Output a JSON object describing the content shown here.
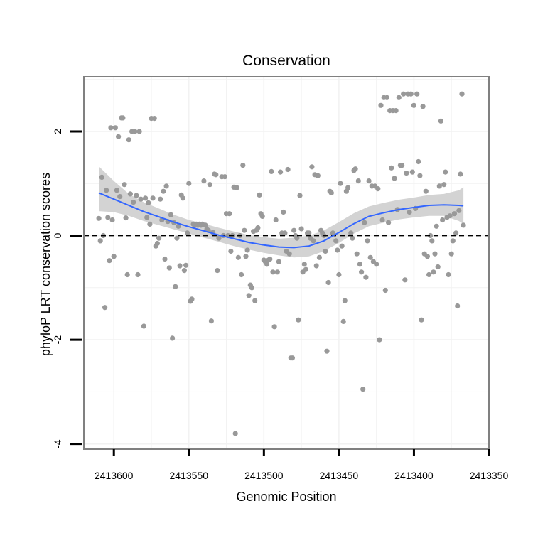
{
  "chart_data": {
    "type": "scatter",
    "title": "Conservation",
    "xlabel": "Genomic Position",
    "ylabel": "phyloP LRT conservation scores",
    "x_reversed": true,
    "xlim": [
      2413620,
      2413350
    ],
    "ylim": [
      -4.1,
      3.05
    ],
    "x_ticks": [
      2413600,
      2413550,
      2413500,
      2413450,
      2413400,
      2413350
    ],
    "x_tick_labels": [
      "2413600",
      "2413550",
      "2413500",
      "2413450",
      "2413400",
      "2413350"
    ],
    "y_ticks": [
      -4,
      -2,
      0,
      2
    ],
    "y_tick_labels": [
      "-4",
      "-2",
      "0",
      "2"
    ],
    "reference_line": {
      "y": 0,
      "style": "dashed"
    },
    "colors": {
      "points": "#999999",
      "smooth_line": "#3366ff",
      "ribbon": "#d3d3d3",
      "grid": "#f2f2f2",
      "panel_border": "#808080"
    },
    "points": [
      [
        2413610,
        0.33
      ],
      [
        2413609,
        -0.1
      ],
      [
        2413608,
        1.12
      ],
      [
        2413607,
        0.0
      ],
      [
        2413606,
        -1.38
      ],
      [
        2413605,
        0.87
      ],
      [
        2413604,
        0.35
      ],
      [
        2413603,
        -0.48
      ],
      [
        2413602,
        2.07
      ],
      [
        2413601,
        0.3
      ],
      [
        2413600,
        -0.4
      ],
      [
        2413599,
        2.07
      ],
      [
        2413598,
        0.87
      ],
      [
        2413597,
        1.9
      ],
      [
        2413596,
        0.75
      ],
      [
        2413595,
        2.26
      ],
      [
        2413594,
        2.26
      ],
      [
        2413593,
        0.98
      ],
      [
        2413592,
        0.34
      ],
      [
        2413591,
        -0.75
      ],
      [
        2413590,
        1.84
      ],
      [
        2413589,
        0.8
      ],
      [
        2413588,
        2.0
      ],
      [
        2413587,
        0.64
      ],
      [
        2413586,
        2.0
      ],
      [
        2413585,
        0.77
      ],
      [
        2413584,
        -0.75
      ],
      [
        2413583,
        2.0
      ],
      [
        2413582,
        0.7
      ],
      [
        2413580,
        -1.74
      ],
      [
        2413579,
        0.72
      ],
      [
        2413578,
        0.35
      ],
      [
        2413577,
        0.63
      ],
      [
        2413576,
        0.22
      ],
      [
        2413575,
        2.25
      ],
      [
        2413574,
        0.72
      ],
      [
        2413573,
        2.25
      ],
      [
        2413572,
        -0.2
      ],
      [
        2413571,
        -0.15
      ],
      [
        2413570,
        -0.05
      ],
      [
        2413569,
        0.7
      ],
      [
        2413568,
        0.3
      ],
      [
        2413567,
        0.85
      ],
      [
        2413566,
        -0.45
      ],
      [
        2413565,
        0.95
      ],
      [
        2413564,
        0.27
      ],
      [
        2413563,
        -0.62
      ],
      [
        2413562,
        0.4
      ],
      [
        2413561,
        -1.97
      ],
      [
        2413560,
        0.25
      ],
      [
        2413559,
        -0.98
      ],
      [
        2413558,
        -0.05
      ],
      [
        2413557,
        0.18
      ],
      [
        2413556,
        -0.58
      ],
      [
        2413555,
        0.78
      ],
      [
        2413554,
        0.72
      ],
      [
        2413553,
        -0.67
      ],
      [
        2413552,
        -0.57
      ],
      [
        2413551,
        0.05
      ],
      [
        2413550,
        1.0
      ],
      [
        2413549,
        -1.26
      ],
      [
        2413548,
        -1.22
      ],
      [
        2413547,
        0.22
      ],
      [
        2413546,
        0.2
      ],
      [
        2413545,
        0.22
      ],
      [
        2413544,
        0.2
      ],
      [
        2413543,
        0.22
      ],
      [
        2413542,
        0.2
      ],
      [
        2413541,
        0.22
      ],
      [
        2413540,
        1.05
      ],
      [
        2413539,
        0.2
      ],
      [
        2413538,
        0.12
      ],
      [
        2413537,
        0.1
      ],
      [
        2413536,
        0.98
      ],
      [
        2413535,
        -1.64
      ],
      [
        2413534,
        0.06
      ],
      [
        2413533,
        1.18
      ],
      [
        2413532,
        1.17
      ],
      [
        2413531,
        -0.67
      ],
      [
        2413530,
        -0.05
      ],
      [
        2413528,
        1.13
      ],
      [
        2413527,
        0.0
      ],
      [
        2413526,
        1.13
      ],
      [
        2413525,
        0.42
      ],
      [
        2413524,
        0.0
      ],
      [
        2413523,
        0.42
      ],
      [
        2413522,
        -0.3
      ],
      [
        2413521,
        0.0
      ],
      [
        2413520,
        0.93
      ],
      [
        2413519,
        -3.8
      ],
      [
        2413518,
        0.92
      ],
      [
        2413517,
        -0.42
      ],
      [
        2413516,
        0.0
      ],
      [
        2413515,
        -0.75
      ],
      [
        2413514,
        1.35
      ],
      [
        2413513,
        0.1
      ],
      [
        2413512,
        -0.4
      ],
      [
        2413511,
        -0.28
      ],
      [
        2413510,
        -1.15
      ],
      [
        2413509,
        -0.95
      ],
      [
        2413508,
        -1.0
      ],
      [
        2413507,
        0.08
      ],
      [
        2413506,
        -1.25
      ],
      [
        2413505,
        0.1
      ],
      [
        2413504,
        0.15
      ],
      [
        2413503,
        0.78
      ],
      [
        2413502,
        0.42
      ],
      [
        2413501,
        0.37
      ],
      [
        2413500,
        -0.47
      ],
      [
        2413499,
        -0.5
      ],
      [
        2413498,
        -0.55
      ],
      [
        2413497,
        -0.47
      ],
      [
        2413496,
        -0.45
      ],
      [
        2413495,
        1.23
      ],
      [
        2413494,
        -0.7
      ],
      [
        2413493,
        -1.75
      ],
      [
        2413492,
        0.3
      ],
      [
        2413491,
        -0.7
      ],
      [
        2413490,
        -0.5
      ],
      [
        2413489,
        1.22
      ],
      [
        2413488,
        0.05
      ],
      [
        2413487,
        0.45
      ],
      [
        2413486,
        0.05
      ],
      [
        2413485,
        -0.3
      ],
      [
        2413484,
        1.27
      ],
      [
        2413483,
        -0.35
      ],
      [
        2413482,
        -2.35
      ],
      [
        2413481,
        -2.35
      ],
      [
        2413480,
        0.1
      ],
      [
        2413479,
        0.0
      ],
      [
        2413478,
        -0.05
      ],
      [
        2413477,
        -1.62
      ],
      [
        2413476,
        0.77
      ],
      [
        2413475,
        0.13
      ],
      [
        2413474,
        -0.7
      ],
      [
        2413473,
        -0.55
      ],
      [
        2413472,
        -0.65
      ],
      [
        2413471,
        0.05
      ],
      [
        2413470,
        0.05
      ],
      [
        2413469,
        -0.05
      ],
      [
        2413468,
        1.32
      ],
      [
        2413467,
        -0.1
      ],
      [
        2413466,
        1.17
      ],
      [
        2413465,
        -0.58
      ],
      [
        2413464,
        1.15
      ],
      [
        2413463,
        -0.42
      ],
      [
        2413462,
        0.1
      ],
      [
        2413461,
        0.05
      ],
      [
        2413460,
        0.0
      ],
      [
        2413459,
        -0.3
      ],
      [
        2413458,
        -2.22
      ],
      [
        2413457,
        -0.9
      ],
      [
        2413456,
        0.85
      ],
      [
        2413455,
        0.82
      ],
      [
        2413454,
        0.05
      ],
      [
        2413452,
        -0.1
      ],
      [
        2413451,
        -0.28
      ],
      [
        2413450,
        -0.75
      ],
      [
        2413449,
        1.0
      ],
      [
        2413448,
        -0.2
      ],
      [
        2413447,
        -1.65
      ],
      [
        2413446,
        -1.25
      ],
      [
        2413445,
        0.85
      ],
      [
        2413444,
        0.92
      ],
      [
        2413442,
        0.05
      ],
      [
        2413441,
        -0.05
      ],
      [
        2413440,
        1.25
      ],
      [
        2413439,
        1.28
      ],
      [
        2413438,
        -0.35
      ],
      [
        2413437,
        1.05
      ],
      [
        2413436,
        -0.55
      ],
      [
        2413435,
        -0.7
      ],
      [
        2413434,
        -2.95
      ],
      [
        2413433,
        0.25
      ],
      [
        2413432,
        -0.8
      ],
      [
        2413431,
        -0.1
      ],
      [
        2413430,
        1.05
      ],
      [
        2413429,
        -0.42
      ],
      [
        2413428,
        0.95
      ],
      [
        2413427,
        -0.5
      ],
      [
        2413426,
        0.95
      ],
      [
        2413425,
        -0.55
      ],
      [
        2413424,
        0.9
      ],
      [
        2413423,
        -2.0
      ],
      [
        2413422,
        2.5
      ],
      [
        2413421,
        0.3
      ],
      [
        2413420,
        2.65
      ],
      [
        2413419,
        -1.05
      ],
      [
        2413418,
        2.65
      ],
      [
        2413417,
        0.25
      ],
      [
        2413416,
        2.4
      ],
      [
        2413415,
        1.3
      ],
      [
        2413414,
        2.4
      ],
      [
        2413413,
        1.1
      ],
      [
        2413412,
        2.4
      ],
      [
        2413411,
        0.5
      ],
      [
        2413410,
        2.65
      ],
      [
        2413409,
        1.35
      ],
      [
        2413408,
        1.35
      ],
      [
        2413407,
        2.72
      ],
      [
        2413406,
        -0.85
      ],
      [
        2413405,
        1.2
      ],
      [
        2413404,
        2.72
      ],
      [
        2413403,
        0.45
      ],
      [
        2413402,
        2.72
      ],
      [
        2413401,
        1.22
      ],
      [
        2413400,
        2.5
      ],
      [
        2413399,
        0.52
      ],
      [
        2413398,
        2.72
      ],
      [
        2413397,
        1.42
      ],
      [
        2413396,
        1.15
      ],
      [
        2413395,
        -1.62
      ],
      [
        2413394,
        2.48
      ],
      [
        2413393,
        -0.35
      ],
      [
        2413392,
        0.85
      ],
      [
        2413391,
        -0.4
      ],
      [
        2413390,
        -0.75
      ],
      [
        2413389,
        0.0
      ],
      [
        2413388,
        -0.1
      ],
      [
        2413387,
        -0.7
      ],
      [
        2413386,
        -0.35
      ],
      [
        2413385,
        0.18
      ],
      [
        2413384,
        -0.6
      ],
      [
        2413383,
        0.95
      ],
      [
        2413382,
        2.2
      ],
      [
        2413381,
        0.3
      ],
      [
        2413380,
        0.98
      ],
      [
        2413379,
        1.22
      ],
      [
        2413378,
        0.35
      ],
      [
        2413377,
        -0.75
      ],
      [
        2413376,
        0.38
      ],
      [
        2413375,
        -0.35
      ],
      [
        2413374,
        -0.1
      ],
      [
        2413373,
        0.42
      ],
      [
        2413372,
        0.05
      ],
      [
        2413371,
        -1.35
      ],
      [
        2413370,
        0.48
      ],
      [
        2413369,
        1.18
      ],
      [
        2413368,
        2.72
      ],
      [
        2413367,
        0.2
      ]
    ],
    "smooth": {
      "x": [
        2413610,
        2413600,
        2413590,
        2413580,
        2413570,
        2413560,
        2413550,
        2413540,
        2413530,
        2413520,
        2413510,
        2413500,
        2413490,
        2413480,
        2413470,
        2413460,
        2413450,
        2413440,
        2413430,
        2413420,
        2413410,
        2413400,
        2413390,
        2413380,
        2413370,
        2413367
      ],
      "y": [
        0.82,
        0.7,
        0.58,
        0.46,
        0.36,
        0.26,
        0.17,
        0.09,
        0.01,
        -0.06,
        -0.13,
        -0.18,
        -0.22,
        -0.23,
        -0.2,
        -0.1,
        0.06,
        0.23,
        0.37,
        0.44,
        0.5,
        0.54,
        0.58,
        0.59,
        0.58,
        0.57
      ],
      "lower": [
        0.47,
        0.45,
        0.38,
        0.28,
        0.2,
        0.12,
        0.04,
        -0.04,
        -0.12,
        -0.2,
        -0.27,
        -0.33,
        -0.38,
        -0.42,
        -0.4,
        -0.3,
        -0.14,
        0.04,
        0.18,
        0.25,
        0.31,
        0.35,
        0.38,
        0.38,
        0.28,
        0.22
      ],
      "upper": [
        1.33,
        1.05,
        0.8,
        0.64,
        0.52,
        0.4,
        0.3,
        0.23,
        0.15,
        0.08,
        0.01,
        -0.03,
        -0.06,
        -0.04,
        0.0,
        0.1,
        0.26,
        0.43,
        0.56,
        0.63,
        0.69,
        0.73,
        0.78,
        0.8,
        0.87,
        0.93
      ]
    }
  }
}
